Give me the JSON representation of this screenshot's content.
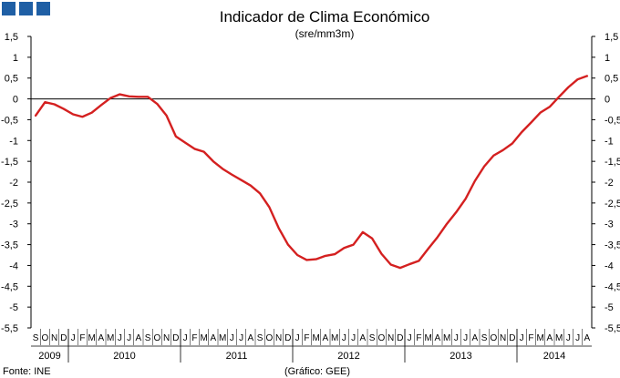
{
  "chart_data": {
    "type": "line",
    "title": "Indicador de Clima Económico",
    "subtitle": "(sre/mm3m)",
    "source": "Fonte: INE",
    "credit": "(Gráfico: GEE)",
    "ylim": [
      -5.5,
      1.5
    ],
    "yticks": [
      "1,5",
      "1",
      "0,5",
      "0",
      "-0,5",
      "-1",
      "-1,5",
      "-2",
      "-2,5",
      "-3",
      "-3,5",
      "-4",
      "-4,5",
      "-5",
      "-5,5"
    ],
    "line_color": "#d42020",
    "header_squares_color": "#1f5fa5",
    "x": [
      "S",
      "O",
      "N",
      "D",
      "J",
      "F",
      "M",
      "A",
      "M",
      "J",
      "J",
      "A",
      "S",
      "O",
      "N",
      "D",
      "J",
      "F",
      "M",
      "A",
      "M",
      "J",
      "J",
      "A",
      "S",
      "O",
      "N",
      "D",
      "J",
      "F",
      "M",
      "A",
      "M",
      "J",
      "J",
      "A",
      "S",
      "O",
      "N",
      "D",
      "J",
      "F",
      "M",
      "A",
      "M",
      "J",
      "J",
      "A",
      "S",
      "O",
      "N",
      "D",
      "J",
      "F",
      "M",
      "A",
      "M",
      "J",
      "J",
      "A"
    ],
    "years": [
      {
        "label": "2009",
        "start": 0,
        "count": 4
      },
      {
        "label": "2010",
        "start": 4,
        "count": 12
      },
      {
        "label": "2011",
        "start": 16,
        "count": 12
      },
      {
        "label": "2012",
        "start": 28,
        "count": 12
      },
      {
        "label": "2013",
        "start": 40,
        "count": 12
      },
      {
        "label": "2014",
        "start": 52,
        "count": 8
      }
    ],
    "series": [
      {
        "values": [
          -0.4,
          -0.08,
          -0.13,
          -0.24,
          -0.37,
          -0.43,
          -0.33,
          -0.15,
          0.02,
          0.11,
          0.06,
          0.05,
          0.05,
          -0.12,
          -0.4,
          -0.9,
          -1.05,
          -1.2,
          -1.27,
          -1.5,
          -1.68,
          -1.82,
          -1.95,
          -2.08,
          -2.27,
          -2.6,
          -3.1,
          -3.5,
          -3.75,
          -3.87,
          -3.85,
          -3.77,
          -3.73,
          -3.58,
          -3.5,
          -3.2,
          -3.35,
          -3.72,
          -3.98,
          -4.06,
          -3.97,
          -3.89,
          -3.6,
          -3.32,
          -3.0,
          -2.72,
          -2.4,
          -1.97,
          -1.62,
          -1.36,
          -1.23,
          -1.07,
          -0.8,
          -0.57,
          -0.33,
          -0.19,
          0.05,
          0.28,
          0.47,
          0.55
        ]
      }
    ]
  }
}
